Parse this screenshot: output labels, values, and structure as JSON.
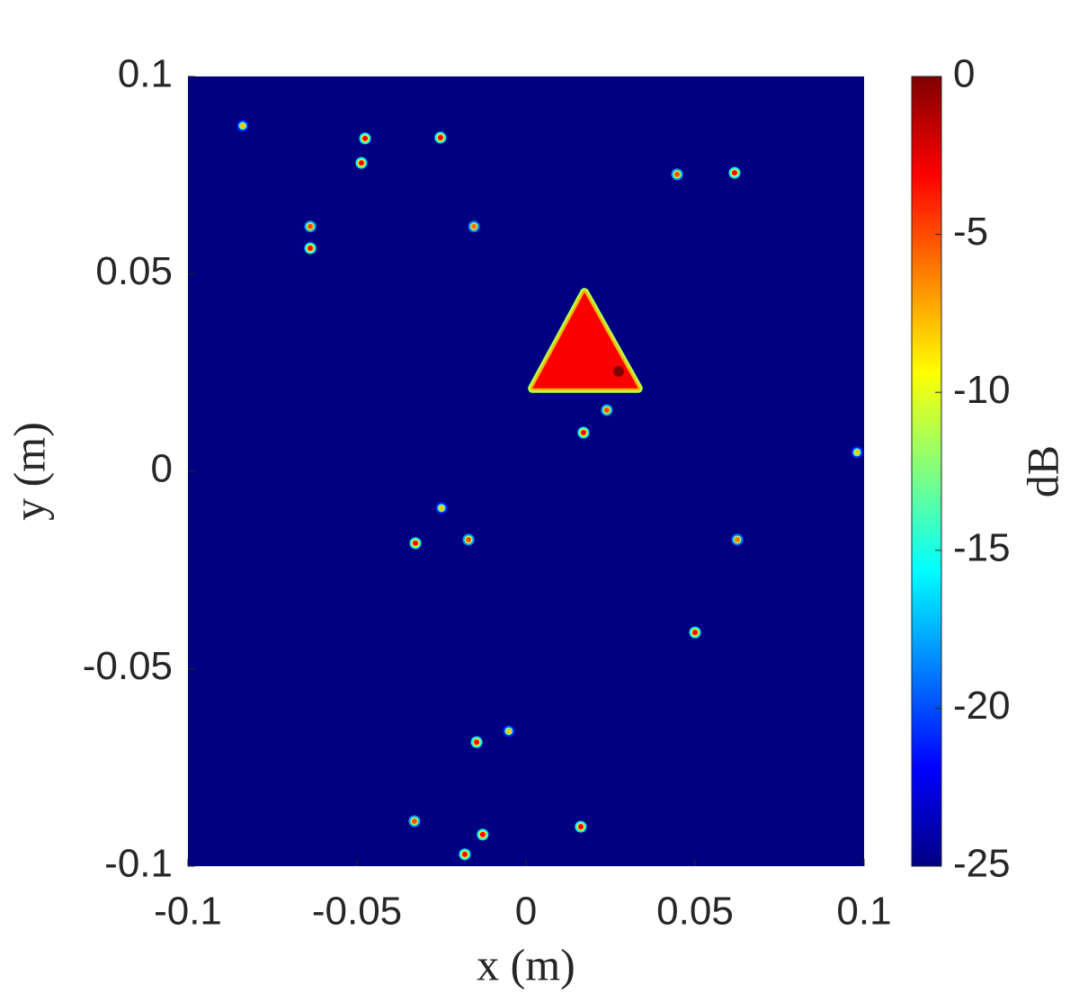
{
  "chart_data": {
    "type": "heatmap",
    "x_label": "x (m)",
    "y_label": "y (m)",
    "colorbar_label": "dB",
    "xlim": [
      -0.1,
      0.1
    ],
    "xticks": [
      -0.1,
      -0.05,
      0,
      0.05,
      0.1
    ],
    "ylim": [
      -0.1,
      0.1
    ],
    "yticks": [
      -0.1,
      -0.05,
      0,
      0.05,
      0.1
    ],
    "clim": [
      -25,
      0
    ],
    "cticks": [
      -25,
      -20,
      -15,
      -10,
      -5,
      0
    ],
    "colormap": "jet",
    "points": {
      "x": [
        -0.0838,
        -0.0476,
        -0.0253,
        -0.0487,
        0.0447,
        0.0617,
        -0.0638,
        -0.0638,
        -0.0154,
        0.0239,
        0.017,
        0.0979,
        -0.025,
        -0.0327,
        -0.017,
        0.0625,
        0.05,
        -0.0051,
        -0.0146,
        -0.033,
        -0.0128,
        0.0162,
        -0.0181
      ],
      "y": [
        0.0875,
        0.0843,
        0.0845,
        0.0781,
        0.0752,
        0.0756,
        0.062,
        0.0565,
        0.062,
        0.0155,
        0.0098,
        0.0048,
        -0.0093,
        -0.0182,
        -0.0173,
        -0.0173,
        -0.0408,
        -0.0658,
        -0.0686,
        -0.0886,
        -0.092,
        -0.09,
        -0.097
      ],
      "values": [
        -8,
        -3,
        -3,
        -3,
        -5,
        -3,
        -5,
        -3,
        -6,
        -5,
        -3,
        -8,
        -8,
        -3,
        -5,
        -6,
        -3,
        -8,
        -3,
        -5,
        -3,
        -3,
        -3
      ]
    },
    "triangle": {
      "x": [
        0.0173,
        0.0019,
        0.0332
      ],
      "y": [
        0.0453,
        0.021,
        0.021
      ],
      "value": -3
    },
    "peak": {
      "x": 0.0274,
      "y": 0.0253,
      "value": 0
    }
  }
}
